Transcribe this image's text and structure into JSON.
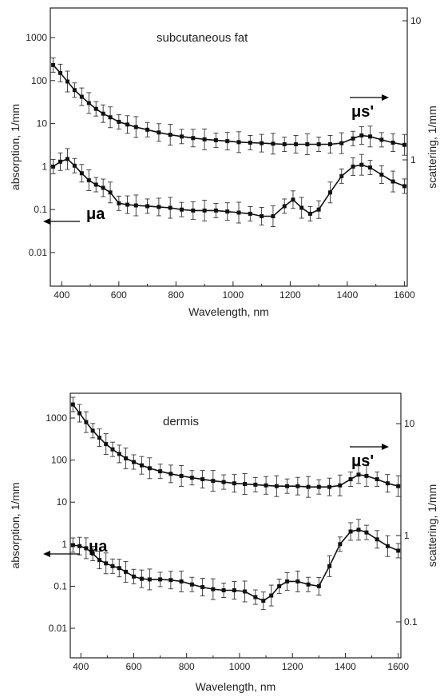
{
  "chart_data": [
    {
      "type": "line",
      "title": "subcutaneous fat",
      "xlabel": "Wavelength, nm",
      "ylabel_left": "absorption, 1/mm",
      "ylabel_right": "scattering, 1/mm",
      "xlim": [
        360,
        1610
      ],
      "ylim_left": [
        0.001,
        8000
      ],
      "ylim_right": [
        0.3,
        12
      ],
      "log_scale_y": true,
      "x_ticks": [
        "400",
        "600",
        "800",
        "1000",
        "1200",
        "1400",
        "1600"
      ],
      "y_ticks_left": [
        "0.01",
        "0.1",
        "1",
        "10",
        "100",
        "1000"
      ],
      "y_ticks_right": [
        "1",
        "10"
      ],
      "annotation_scattering": "μs'",
      "annotation_absorption": "μa",
      "series": [
        {
          "axis": "left",
          "x": [
            370,
            395,
            420,
            445,
            470,
            495,
            520,
            545,
            570,
            600,
            630,
            660,
            700,
            740,
            780,
            820,
            860,
            900,
            940,
            980,
            1020,
            1060,
            1100,
            1140,
            1180,
            1220,
            1260,
            1300,
            1340,
            1380,
            1420,
            1450,
            1480,
            1520,
            1560,
            1600
          ],
          "y": [
            230,
            150,
            95,
            60,
            42,
            30,
            22,
            17,
            14,
            11,
            9.5,
            8.3,
            7.2,
            6.2,
            5.5,
            5.0,
            4.6,
            4.3,
            4.1,
            3.9,
            3.7,
            3.6,
            3.5,
            3.4,
            3.3,
            3.3,
            3.3,
            3.3,
            3.3,
            3.5,
            4.5,
            5.3,
            5.0,
            4.2,
            3.6,
            3.2
          ]
        },
        {
          "axis": "left",
          "x": [
            370,
            395,
            420,
            445,
            470,
            495,
            520,
            545,
            570,
            600,
            630,
            660,
            700,
            740,
            780,
            820,
            860,
            900,
            940,
            980,
            1020,
            1060,
            1100,
            1140,
            1180,
            1210,
            1240,
            1270,
            1300,
            1340,
            1380,
            1420,
            1450,
            1480,
            1520,
            1560,
            1600
          ],
          "y": [
            1.0,
            1.3,
            1.5,
            1.05,
            0.7,
            0.48,
            0.38,
            0.32,
            0.25,
            0.14,
            0.13,
            0.125,
            0.12,
            0.115,
            0.11,
            0.1,
            0.095,
            0.095,
            0.095,
            0.09,
            0.085,
            0.08,
            0.07,
            0.07,
            0.12,
            0.17,
            0.11,
            0.08,
            0.1,
            0.25,
            0.6,
            1.0,
            1.1,
            0.95,
            0.65,
            0.45,
            0.35
          ]
        }
      ]
    },
    {
      "type": "line",
      "title": "dermis",
      "xlabel": "Wavelength, nm",
      "ylabel_left": "absorption, 1/mm",
      "ylabel_right": "scattering, 1/mm",
      "xlim": [
        360,
        1610
      ],
      "ylim_left": [
        0.002,
        8000
      ],
      "ylim_right": [
        0.05,
        12
      ],
      "log_scale_y": true,
      "x_ticks": [
        "400",
        "600",
        "800",
        "1000",
        "1200",
        "1400",
        "1600"
      ],
      "y_ticks_left": [
        "0.01",
        "0.1",
        "1",
        "10",
        "100",
        "1000"
      ],
      "y_ticks_right": [
        "0.1",
        "1",
        "10"
      ],
      "annotation_scattering": "μs'",
      "annotation_absorption": "μa",
      "series": [
        {
          "axis": "left",
          "x": [
            370,
            395,
            420,
            445,
            470,
            495,
            520,
            545,
            570,
            600,
            630,
            660,
            700,
            740,
            780,
            820,
            860,
            900,
            940,
            980,
            1020,
            1060,
            1100,
            1140,
            1180,
            1220,
            1260,
            1300,
            1340,
            1380,
            1420,
            1450,
            1480,
            1520,
            1560,
            1600
          ],
          "y": [
            2100,
            1300,
            800,
            500,
            340,
            240,
            180,
            140,
            110,
            90,
            75,
            64,
            54,
            47,
            42,
            38,
            35,
            32,
            30,
            28,
            27,
            26,
            25,
            24,
            24,
            24,
            23,
            23,
            23,
            25,
            35,
            45,
            42,
            35,
            28,
            24
          ]
        },
        {
          "axis": "left",
          "x": [
            370,
            395,
            420,
            445,
            470,
            495,
            520,
            545,
            570,
            600,
            630,
            660,
            700,
            740,
            780,
            820,
            860,
            900,
            940,
            980,
            1020,
            1060,
            1090,
            1120,
            1150,
            1180,
            1220,
            1260,
            1300,
            1340,
            1380,
            1420,
            1450,
            1480,
            1520,
            1560,
            1600
          ],
          "y": [
            0.95,
            0.9,
            0.8,
            0.6,
            0.42,
            0.35,
            0.3,
            0.27,
            0.22,
            0.17,
            0.15,
            0.145,
            0.145,
            0.14,
            0.13,
            0.11,
            0.095,
            0.085,
            0.08,
            0.08,
            0.075,
            0.055,
            0.045,
            0.06,
            0.1,
            0.13,
            0.13,
            0.11,
            0.1,
            0.3,
            1.0,
            2.0,
            2.2,
            1.9,
            1.3,
            0.9,
            0.7
          ]
        }
      ]
    }
  ]
}
